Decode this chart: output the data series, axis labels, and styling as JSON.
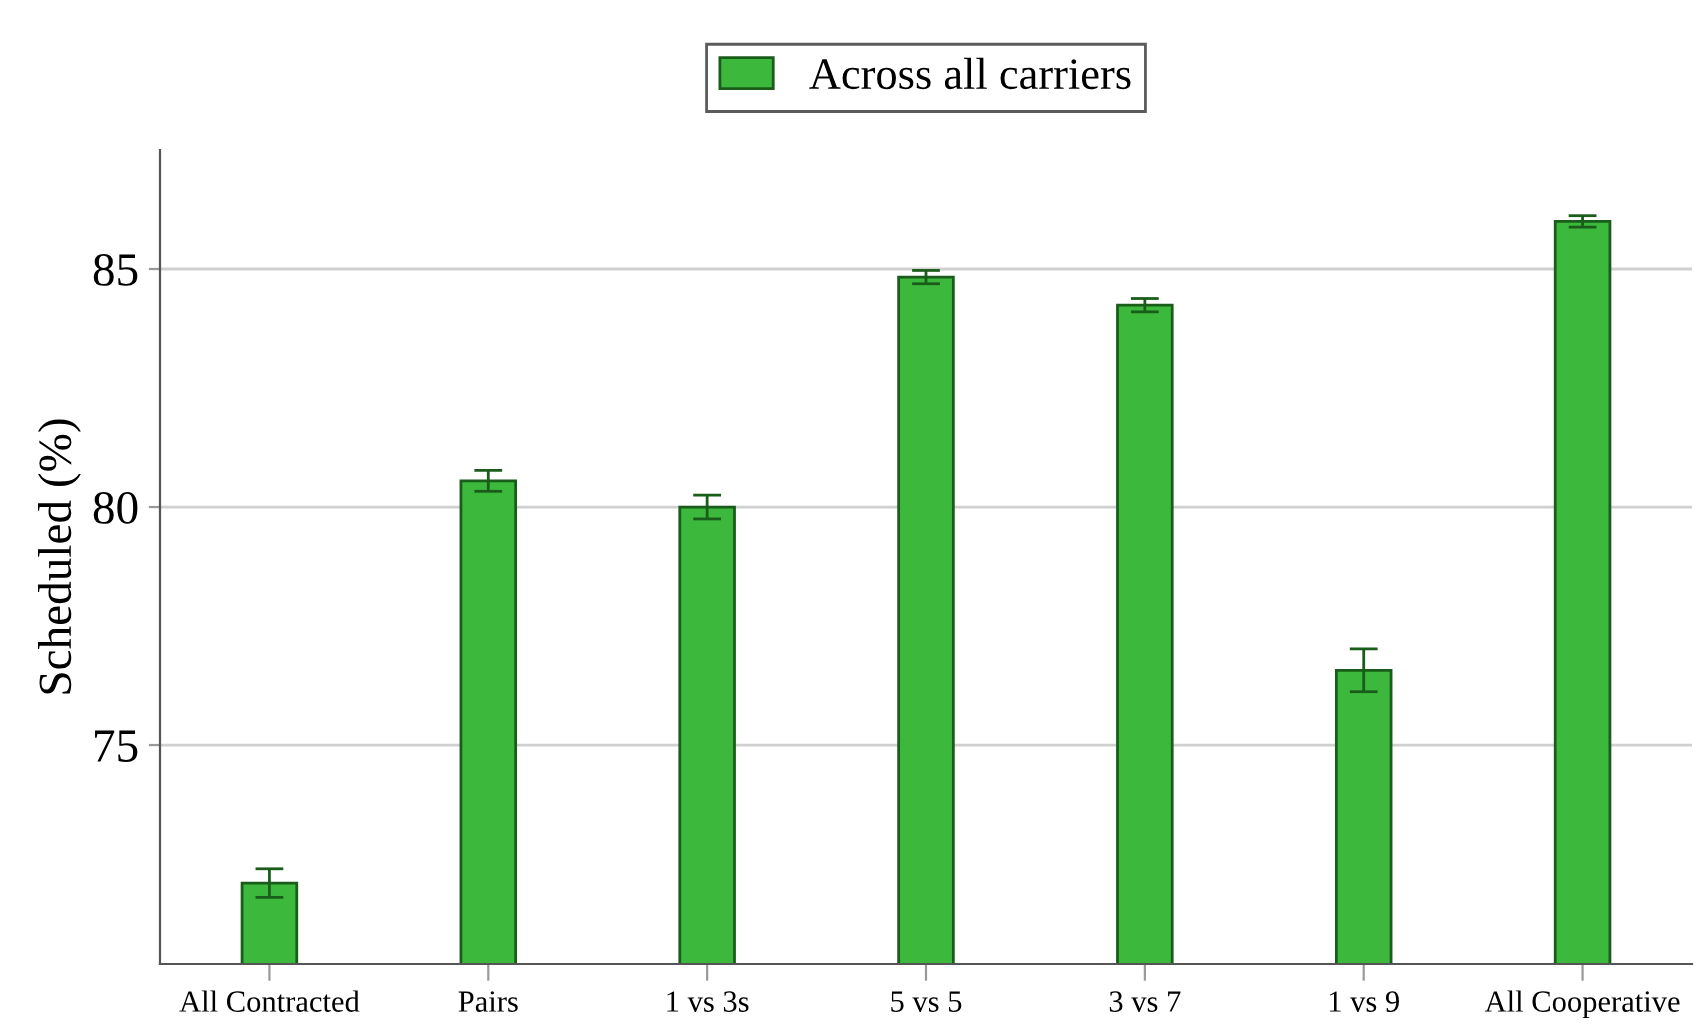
{
  "chart_data": {
    "type": "bar",
    "ylabel": "Scheduled (%)",
    "categories": [
      "All Contracted",
      "Pairs",
      "1 vs 3s",
      "5 vs 5",
      "3 vs 7",
      "1 vs 9",
      "All Cooperative"
    ],
    "series": [
      {
        "name": "Across all carriers",
        "color": "#3cb93c",
        "values": [
          72.1,
          80.55,
          80.0,
          84.83,
          84.24,
          76.57,
          86.0
        ],
        "errors": [
          0.3,
          0.22,
          0.25,
          0.14,
          0.14,
          0.45,
          0.12
        ]
      }
    ],
    "ylim": [
      70.4,
      87.5
    ],
    "yticks": [
      75,
      80,
      85
    ],
    "grid": "y",
    "legend": "top"
  }
}
